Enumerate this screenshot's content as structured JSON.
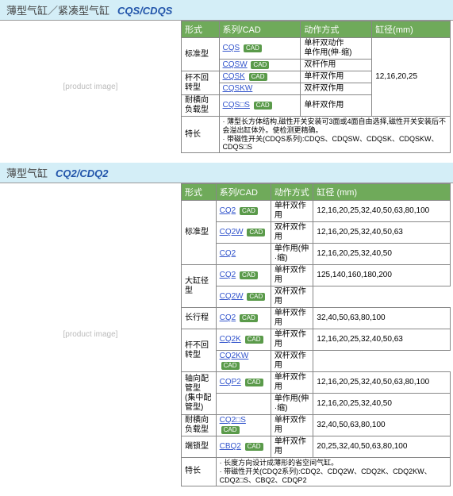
{
  "sections": [
    {
      "title_cn": "薄型气缸／紧凑型气缸",
      "title_series": "CQS/CDQS",
      "headers": [
        "形式",
        "系列/CAD",
        "动作方式",
        "缸径(mm)"
      ],
      "bore_merged": "12,16,20,25",
      "rows": [
        {
          "form": "标准型",
          "form_rs": 2,
          "series": "CQS",
          "cad": true,
          "action": "单杆双动作\n单作用(伸·缩)",
          "bore_first": true,
          "bore_rs": 5
        },
        {
          "series": "CQSW",
          "cad": true,
          "action": "双杆作用"
        },
        {
          "form": "杆不回转型",
          "form_rs": 2,
          "series": "CQSK",
          "cad": true,
          "action": "单杆双作用"
        },
        {
          "series": "CQSKW",
          "action": "双杆双作用"
        },
        {
          "form": "耐横向负载型",
          "series": "CQS□S",
          "cad": true,
          "action": "单杆双作用"
        }
      ],
      "note_label": "特长",
      "note": "· 薄型长方体结构,磁性开关安装可3面或4面自由选择,磁性开关安装后不会溢出缸体外。使检测更精确。\n· 带磁性开关(CDQS系列):CDQS、CDQSW、CDQSK、CDQSKW、CDQS□S"
    },
    {
      "title_cn": "薄型气缸",
      "title_series": "CQ2/CDQ2",
      "headers": [
        "形式",
        "系列/CAD",
        "动作方式",
        "缸径 (mm)"
      ],
      "rows": [
        {
          "form": "标准型",
          "form_rs": 3,
          "series": "CQ2",
          "cad": true,
          "action": "单杆双作用",
          "bore": "12,16,20,25,32,40,50,63,80,100"
        },
        {
          "series": "CQ2W",
          "cad": true,
          "action": "双杆双作用",
          "bore": "12,16,20,25,32,40,50,63"
        },
        {
          "series": "CQ2",
          "action": "单作用(伸·缩)",
          "bore": "12,16,20,25,32,40,50"
        },
        {
          "form": "大缸径型",
          "form_rs": 2,
          "series": "CQ2",
          "cad": true,
          "action": "单杆双作用",
          "bore": "125,140,160,180,200"
        },
        {
          "series": "CQ2W",
          "cad": true,
          "action": "双杆双作用"
        },
        {
          "form": "长行程",
          "series": "CQ2",
          "cad": true,
          "action": "单杆双作用",
          "bore": "32,40,50,63,80,100"
        },
        {
          "form": "杆不回转型",
          "form_rs": 2,
          "series": "CQ2K",
          "cad": true,
          "action": "单杆双作用",
          "bore": "12,16,20,25,32,40,50,63"
        },
        {
          "series": "CQ2KW",
          "cad": true,
          "action": "双杆双作用"
        },
        {
          "form": "轴向配管型\n(集中配管型)",
          "form_rs": 2,
          "series": "CQP2",
          "cad": true,
          "action": "单杆双作用",
          "bore": "12,16,20,25,32,40,50,63,80,100"
        },
        {
          "series": "",
          "action": "单作用(伸·缩)",
          "bore": "12,16,20,25,32,40,50"
        },
        {
          "form": "耐横向负载型",
          "series": "CQ2□S",
          "cad": true,
          "action": "单杆双作用",
          "bore": "32,40,50,63,80,100"
        },
        {
          "form": "端锁型",
          "series": "CBQ2",
          "cad": true,
          "action": "单杆双作用",
          "bore": "20,25,32,40,50,63,80,100"
        }
      ],
      "note_label": "特长",
      "note": "· 长度方向设计成薄形的省空间气缸。\n· 带磁性开关(CDQ2系列):CDQ2、CDQ2W、CDQ2K、CDQ2KW、CDQ2□S、CBQ2、CDQP2"
    }
  ],
  "cad_label": "CAD"
}
